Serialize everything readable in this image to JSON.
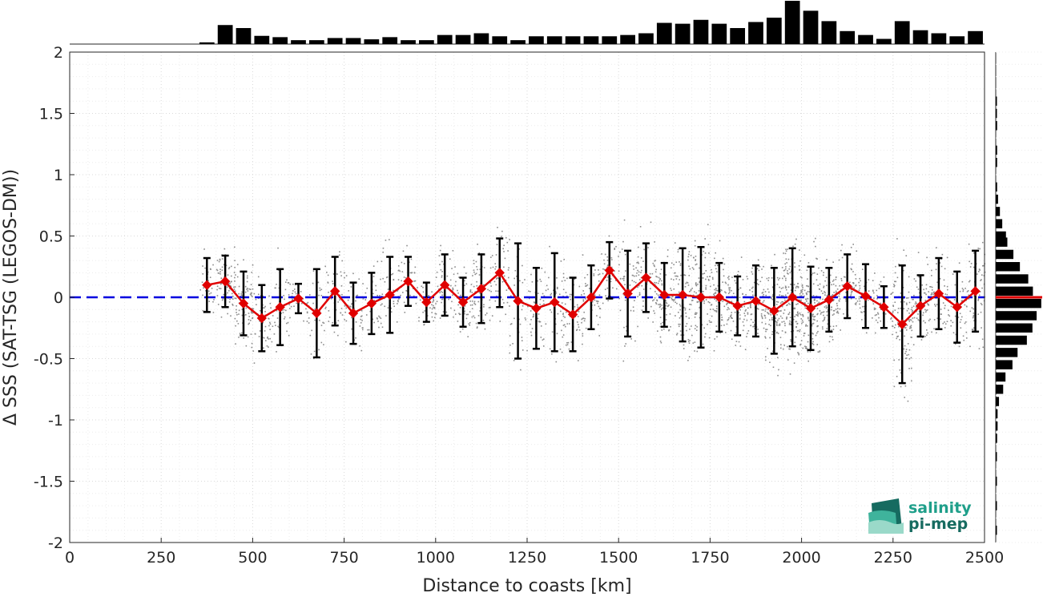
{
  "chart_data": {
    "type": "scatter",
    "xlabel": "Distance to coasts [km]",
    "ylabel": "Δ SSS (SAT-TSG (LEGOS-DM))",
    "xlim": [
      0,
      2500
    ],
    "ylim": [
      -2,
      2
    ],
    "xticks": [
      0,
      250,
      500,
      750,
      1000,
      1250,
      1500,
      1750,
      2000,
      2250,
      2500
    ],
    "yticks": [
      2,
      1.5,
      1,
      0.5,
      0,
      -0.5,
      -1,
      -1.5,
      -2
    ],
    "grid": true,
    "reference_line": {
      "y": 0,
      "style": "dashed",
      "color": "#0000e0"
    },
    "binned_mean": {
      "x": [
        375,
        425,
        475,
        525,
        575,
        625,
        675,
        725,
        775,
        825,
        875,
        925,
        975,
        1025,
        1075,
        1125,
        1175,
        1225,
        1275,
        1325,
        1375,
        1425,
        1475,
        1525,
        1575,
        1625,
        1675,
        1725,
        1775,
        1825,
        1875,
        1925,
        1975,
        2025,
        2075,
        2125,
        2175,
        2225,
        2275,
        2325,
        2375,
        2425,
        2475
      ],
      "mean": [
        0.1,
        0.13,
        -0.05,
        -0.17,
        -0.08,
        -0.01,
        -0.13,
        0.05,
        -0.13,
        -0.05,
        0.02,
        0.13,
        -0.04,
        0.1,
        -0.04,
        0.07,
        0.2,
        -0.03,
        -0.09,
        -0.04,
        -0.14,
        0.0,
        0.22,
        0.03,
        0.16,
        0.02,
        0.02,
        0.0,
        0.0,
        -0.07,
        -0.03,
        -0.11,
        0.0,
        -0.09,
        -0.02,
        0.09,
        0.01,
        -0.08,
        -0.22,
        -0.07,
        0.03,
        -0.08,
        0.05
      ],
      "std": [
        0.22,
        0.21,
        0.26,
        0.27,
        0.31,
        0.12,
        0.36,
        0.28,
        0.25,
        0.25,
        0.31,
        0.2,
        0.16,
        0.25,
        0.2,
        0.28,
        0.28,
        0.47,
        0.33,
        0.4,
        0.3,
        0.26,
        0.23,
        0.35,
        0.28,
        0.26,
        0.38,
        0.41,
        0.28,
        0.24,
        0.29,
        0.35,
        0.4,
        0.34,
        0.26,
        0.26,
        0.26,
        0.17,
        0.48,
        0.25,
        0.29,
        0.29,
        0.33
      ],
      "color": "#e00000"
    },
    "scatter_color": "#8c8c8c",
    "top_histogram": {
      "bin_centers": [
        25,
        75,
        125,
        175,
        225,
        275,
        325,
        375,
        425,
        475,
        525,
        575,
        625,
        675,
        725,
        775,
        825,
        875,
        925,
        975,
        1025,
        1075,
        1125,
        1175,
        1225,
        1275,
        1325,
        1375,
        1425,
        1475,
        1525,
        1575,
        1625,
        1675,
        1725,
        1775,
        1825,
        1875,
        1925,
        1975,
        2025,
        2075,
        2125,
        2175,
        2225,
        2275,
        2325,
        2375,
        2425,
        2475
      ],
      "relative_counts": [
        0,
        0,
        0,
        0,
        0,
        0,
        0,
        0.04,
        0.44,
        0.37,
        0.19,
        0.16,
        0.09,
        0.09,
        0.14,
        0.14,
        0.11,
        0.16,
        0.09,
        0.09,
        0.21,
        0.21,
        0.25,
        0.18,
        0.09,
        0.18,
        0.18,
        0.18,
        0.18,
        0.18,
        0.21,
        0.25,
        0.49,
        0.47,
        0.56,
        0.47,
        0.37,
        0.51,
        0.61,
        1.0,
        0.77,
        0.53,
        0.3,
        0.21,
        0.12,
        0.53,
        0.32,
        0.25,
        0.18,
        0.3
      ]
    },
    "right_histogram": {
      "bin_centers": [
        1.6,
        1.5,
        1.4,
        1.2,
        1.1,
        0.9,
        0.8,
        0.7,
        0.6,
        0.5,
        0.45,
        0.35,
        0.25,
        0.15,
        0.05,
        -0.05,
        -0.15,
        -0.25,
        -0.35,
        -0.45,
        -0.55,
        -0.65,
        -0.75,
        -0.85,
        -0.95,
        -1.05,
        -1.15,
        -1.3,
        -1.5,
        -1.7,
        -1.9
      ],
      "relative_counts": [
        0.02,
        0.02,
        0.03,
        0.03,
        0.03,
        0.03,
        0.05,
        0.09,
        0.14,
        0.22,
        0.25,
        0.38,
        0.52,
        0.7,
        0.8,
        0.98,
        0.88,
        0.79,
        0.67,
        0.47,
        0.36,
        0.21,
        0.16,
        0.07,
        0.04,
        0.04,
        0.03,
        0.02,
        0.02,
        0.02,
        0.02
      ],
      "median_marker": {
        "y": 0,
        "color": "#e00000"
      }
    }
  },
  "logo": {
    "line1": "salinity",
    "line2": "pi-mep",
    "colors": {
      "teal": "#1f9f8a",
      "dark": "#166b60",
      "light": "#9ad9c9"
    }
  }
}
